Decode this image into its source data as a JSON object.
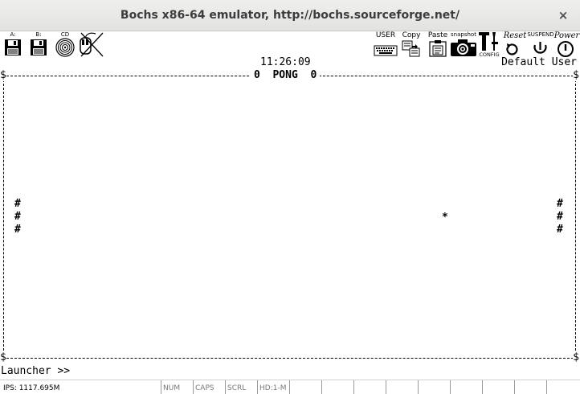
{
  "window": {
    "title": "Bochs x86-64 emulator, http://bochs.sourceforge.net/",
    "close_glyph": "×"
  },
  "toolbar": {
    "floppy_a": "A:",
    "floppy_b": "B:",
    "cdrom": "CD",
    "user": "USER",
    "copy": "Copy",
    "paste": "Paste",
    "snapshot": "snapshot",
    "config": "CONFIG",
    "reset": "Reset",
    "suspend": "SUSPEND",
    "power": "Power",
    "icons": [
      "floppy-a-icon",
      "floppy-b-icon",
      "cdrom-icon",
      "mouse-icon",
      "keyboard-icon",
      "copy-icon",
      "paste-icon",
      "camera-icon",
      "config-icon",
      "reset-icon",
      "suspend-icon",
      "power-icon"
    ]
  },
  "screen": {
    "clock": "11:26:09",
    "user_name": "Default User",
    "corner_glyph": "$",
    "game_title": "0  PONG  0",
    "paddle_left": "#\n#\n#",
    "paddle_right": "#\n#\n#",
    "ball": "*"
  },
  "launcher": {
    "prompt": "Launcher >>"
  },
  "statusbar": {
    "ips": "IPS: 1117.695M",
    "num": "NUM",
    "caps": "CAPS",
    "scrl": "SCRL",
    "hd": "HD:1-M"
  }
}
